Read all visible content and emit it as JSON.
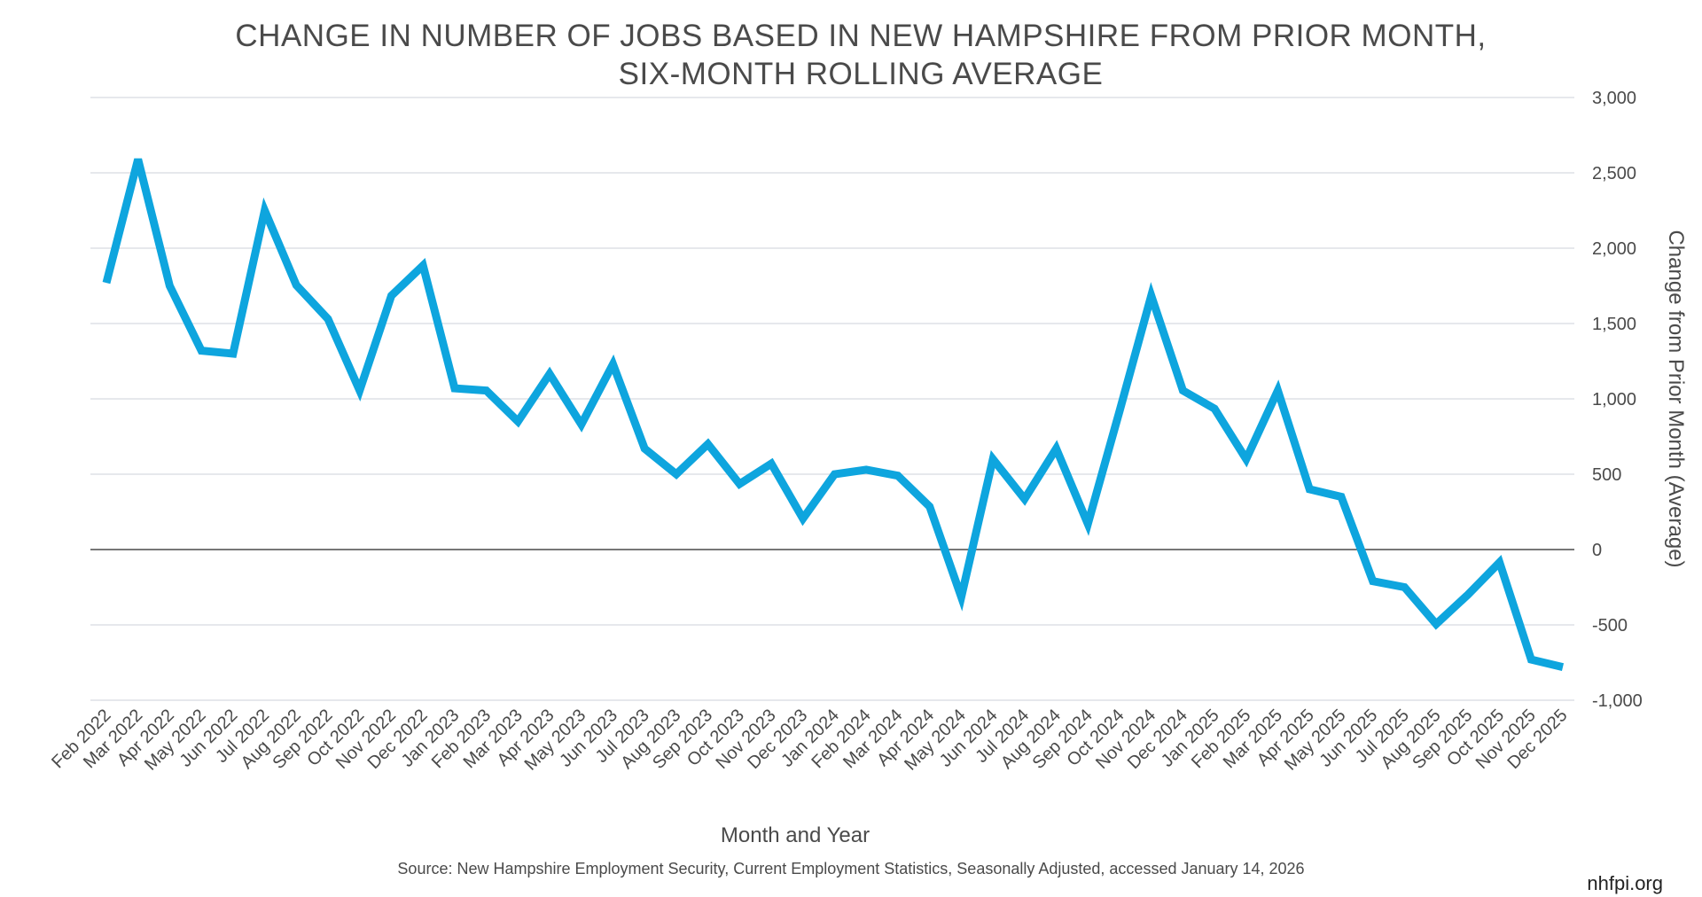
{
  "chart_data": {
    "type": "line",
    "title_line1": "CHANGE IN NUMBER OF JOBS BASED IN NEW HAMPSHIRE FROM PRIOR MONTH,",
    "title_line2": "SIX-MONTH ROLLING AVERAGE",
    "xlabel": "Month and Year",
    "ylabel": "Change from Prior Month (Average)",
    "ylim": [
      -1000,
      3000
    ],
    "yticks": [
      3000,
      2500,
      2000,
      1500,
      1000,
      500,
      0,
      -500,
      -1000
    ],
    "ytick_labels": [
      "3,000",
      "2,500",
      "2,000",
      "1,500",
      "1,000",
      "500",
      "0",
      "-500",
      "-1,000"
    ],
    "grid": true,
    "line_color": "#0ea5de",
    "categories": [
      "Feb 2022",
      "Mar 2022",
      "Apr 2022",
      "May 2022",
      "Jun 2022",
      "Jul 2022",
      "Aug 2022",
      "Sep 2022",
      "Oct 2022",
      "Nov 2022",
      "Dec 2022",
      "Jan 2023",
      "Feb 2023",
      "Mar 2023",
      "Apr 2023",
      "May 2023",
      "Jun 2023",
      "Jul 2023",
      "Aug 2023",
      "Sep 2023",
      "Oct 2023",
      "Nov 2023",
      "Dec 2023",
      "Jan 2024",
      "Feb 2024",
      "Mar 2024",
      "Apr 2024",
      "May 2024",
      "Jun 2024",
      "Jul 2024",
      "Aug 2024",
      "Sep 2024",
      "Oct 2024",
      "Nov 2024",
      "Dec 2024",
      "Jan 2025",
      "Feb 2025",
      "Mar 2025",
      "Apr 2025",
      "May 2025",
      "Jun 2025",
      "Jul 2025",
      "Aug 2025",
      "Sep 2025",
      "Oct 2025",
      "Nov 2025",
      "Dec 2025"
    ],
    "series": [
      {
        "name": "Six-month rolling average",
        "values": [
          1770,
          2590,
          1750,
          1320,
          1300,
          2250,
          1755,
          1530,
          1055,
          1685,
          1885,
          1070,
          1055,
          850,
          1165,
          830,
          1230,
          670,
          500,
          700,
          435,
          570,
          205,
          500,
          530,
          490,
          285,
          -315,
          600,
          335,
          670,
          170,
          920,
          1685,
          1055,
          935,
          600,
          1055,
          400,
          350,
          -210,
          -250,
          -495,
          -300,
          -85,
          -730,
          -780
        ]
      }
    ]
  },
  "source": "Source: New Hampshire Employment Security, Current Employment Statistics, Seasonally Adjusted, accessed January 14, 2026",
  "brand": "nhfpi.org"
}
